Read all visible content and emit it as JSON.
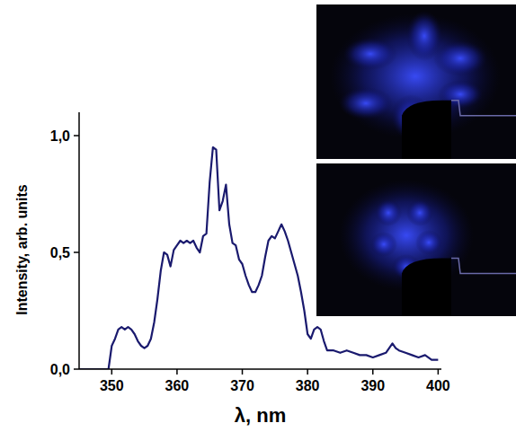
{
  "chart_data": {
    "type": "line",
    "xlabel": "λ, nm",
    "ylabel": "Intensity, arb. units",
    "color": "#1a1a6e",
    "xlim": [
      345,
      400.5
    ],
    "ylim": [
      0,
      1.1
    ],
    "xticks": [
      350,
      360,
      370,
      380,
      390,
      400
    ],
    "yticks": [
      {
        "value": 0,
        "label": "0,0"
      },
      {
        "value": 0.5,
        "label": "0,5"
      },
      {
        "value": 1,
        "label": "1,0"
      }
    ],
    "grid": false,
    "x": [
      345,
      346,
      347,
      348,
      349,
      349.5,
      350,
      350.5,
      351,
      351.5,
      352,
      352.5,
      353,
      353.5,
      354,
      354.5,
      355,
      355.5,
      356,
      356.5,
      357,
      357.5,
      358,
      358.5,
      359,
      359.5,
      360,
      360.5,
      361,
      361.5,
      362,
      362.5,
      363,
      363.5,
      364,
      364.5,
      365,
      365.5,
      366,
      366.5,
      367,
      367.5,
      368,
      368.5,
      369,
      369.5,
      370,
      370.5,
      371,
      371.5,
      372,
      372.5,
      373,
      373.5,
      374,
      374.5,
      375,
      375.5,
      376,
      376.5,
      377,
      377.5,
      378,
      378.5,
      379,
      379.5,
      380,
      380.5,
      381,
      381.5,
      382,
      382.5,
      383,
      384,
      385,
      386,
      387,
      388,
      389,
      390,
      391,
      392,
      393,
      393.5,
      394,
      395,
      396,
      397,
      398,
      399,
      400
    ],
    "values": [
      0,
      0,
      0,
      0,
      0,
      0,
      0.1,
      0.13,
      0.17,
      0.18,
      0.17,
      0.18,
      0.17,
      0.15,
      0.12,
      0.1,
      0.09,
      0.1,
      0.13,
      0.2,
      0.3,
      0.42,
      0.5,
      0.49,
      0.44,
      0.51,
      0.53,
      0.55,
      0.54,
      0.55,
      0.54,
      0.55,
      0.52,
      0.5,
      0.57,
      0.58,
      0.8,
      0.95,
      0.94,
      0.68,
      0.72,
      0.79,
      0.62,
      0.54,
      0.53,
      0.47,
      0.45,
      0.4,
      0.36,
      0.33,
      0.33,
      0.36,
      0.4,
      0.48,
      0.55,
      0.57,
      0.56,
      0.59,
      0.62,
      0.59,
      0.55,
      0.5,
      0.45,
      0.4,
      0.33,
      0.25,
      0.15,
      0.13,
      0.17,
      0.18,
      0.17,
      0.12,
      0.08,
      0.08,
      0.07,
      0.08,
      0.07,
      0.06,
      0.06,
      0.05,
      0.06,
      0.07,
      0.11,
      0.09,
      0.08,
      0.07,
      0.06,
      0.05,
      0.06,
      0.04,
      0.04
    ]
  }
}
